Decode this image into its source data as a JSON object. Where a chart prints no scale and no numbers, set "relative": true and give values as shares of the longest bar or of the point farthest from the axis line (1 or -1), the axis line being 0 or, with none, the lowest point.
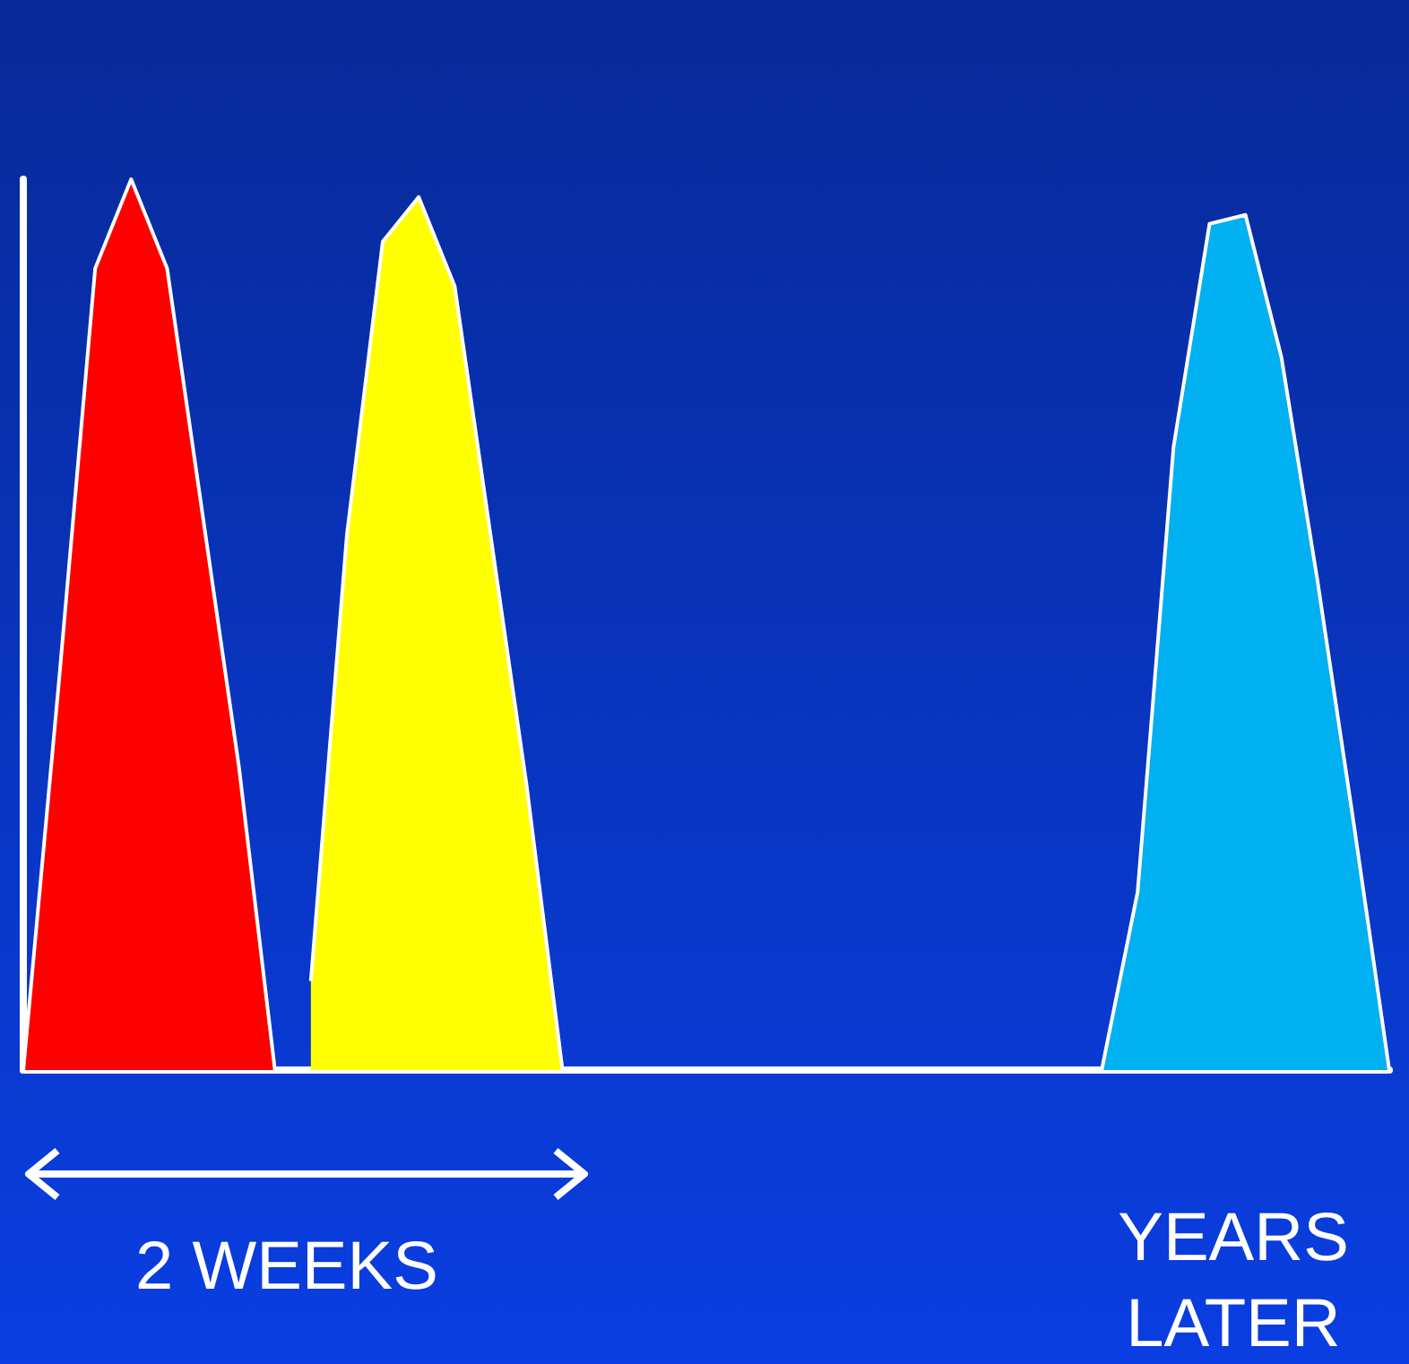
{
  "chart_data": {
    "type": "area",
    "relative": true,
    "categories": [
      null,
      null,
      null,
      null,
      null,
      null,
      null,
      null,
      null,
      null,
      null,
      null,
      null,
      null,
      null,
      null,
      null,
      null,
      null,
      null,
      null,
      null,
      null,
      null,
      null,
      null,
      null,
      null,
      null,
      null,
      null,
      null,
      null,
      null,
      null,
      null,
      null,
      null,
      null
    ],
    "series": [
      {
        "color": "#ff0000",
        "values": [
          0,
          0.44,
          0.9,
          1,
          0.9,
          0.62,
          0.34,
          0,
          null,
          null,
          null,
          null,
          null,
          null,
          null,
          null,
          null,
          null,
          null,
          null,
          null,
          null,
          null,
          null,
          null,
          null,
          null,
          null,
          null,
          null,
          null,
          null,
          null,
          null,
          null,
          null,
          null,
          null,
          null
        ]
      },
      {
        "color": "#ffff00",
        "values": [
          null,
          null,
          null,
          null,
          null,
          null,
          null,
          null,
          0.1,
          0.6,
          0.93,
          0.98,
          0.88,
          0.6,
          0.32,
          0,
          null,
          null,
          null,
          null,
          null,
          null,
          null,
          null,
          null,
          null,
          null,
          null,
          null,
          null,
          null,
          null,
          null,
          null,
          null,
          null,
          null,
          null,
          null
        ]
      },
      {
        "color": "#00b0f0",
        "values": [
          null,
          null,
          null,
          null,
          null,
          null,
          null,
          null,
          null,
          null,
          null,
          null,
          null,
          null,
          null,
          null,
          null,
          null,
          null,
          null,
          null,
          null,
          null,
          null,
          null,
          null,
          null,
          null,
          null,
          null,
          0,
          0.2,
          0.7,
          0.95,
          0.96,
          0.8,
          0.55,
          0.28,
          0
        ]
      }
    ],
    "annotations": [
      "2 WEEKS",
      "YEARS\nLATER"
    ],
    "grid": false,
    "marker": "none"
  }
}
